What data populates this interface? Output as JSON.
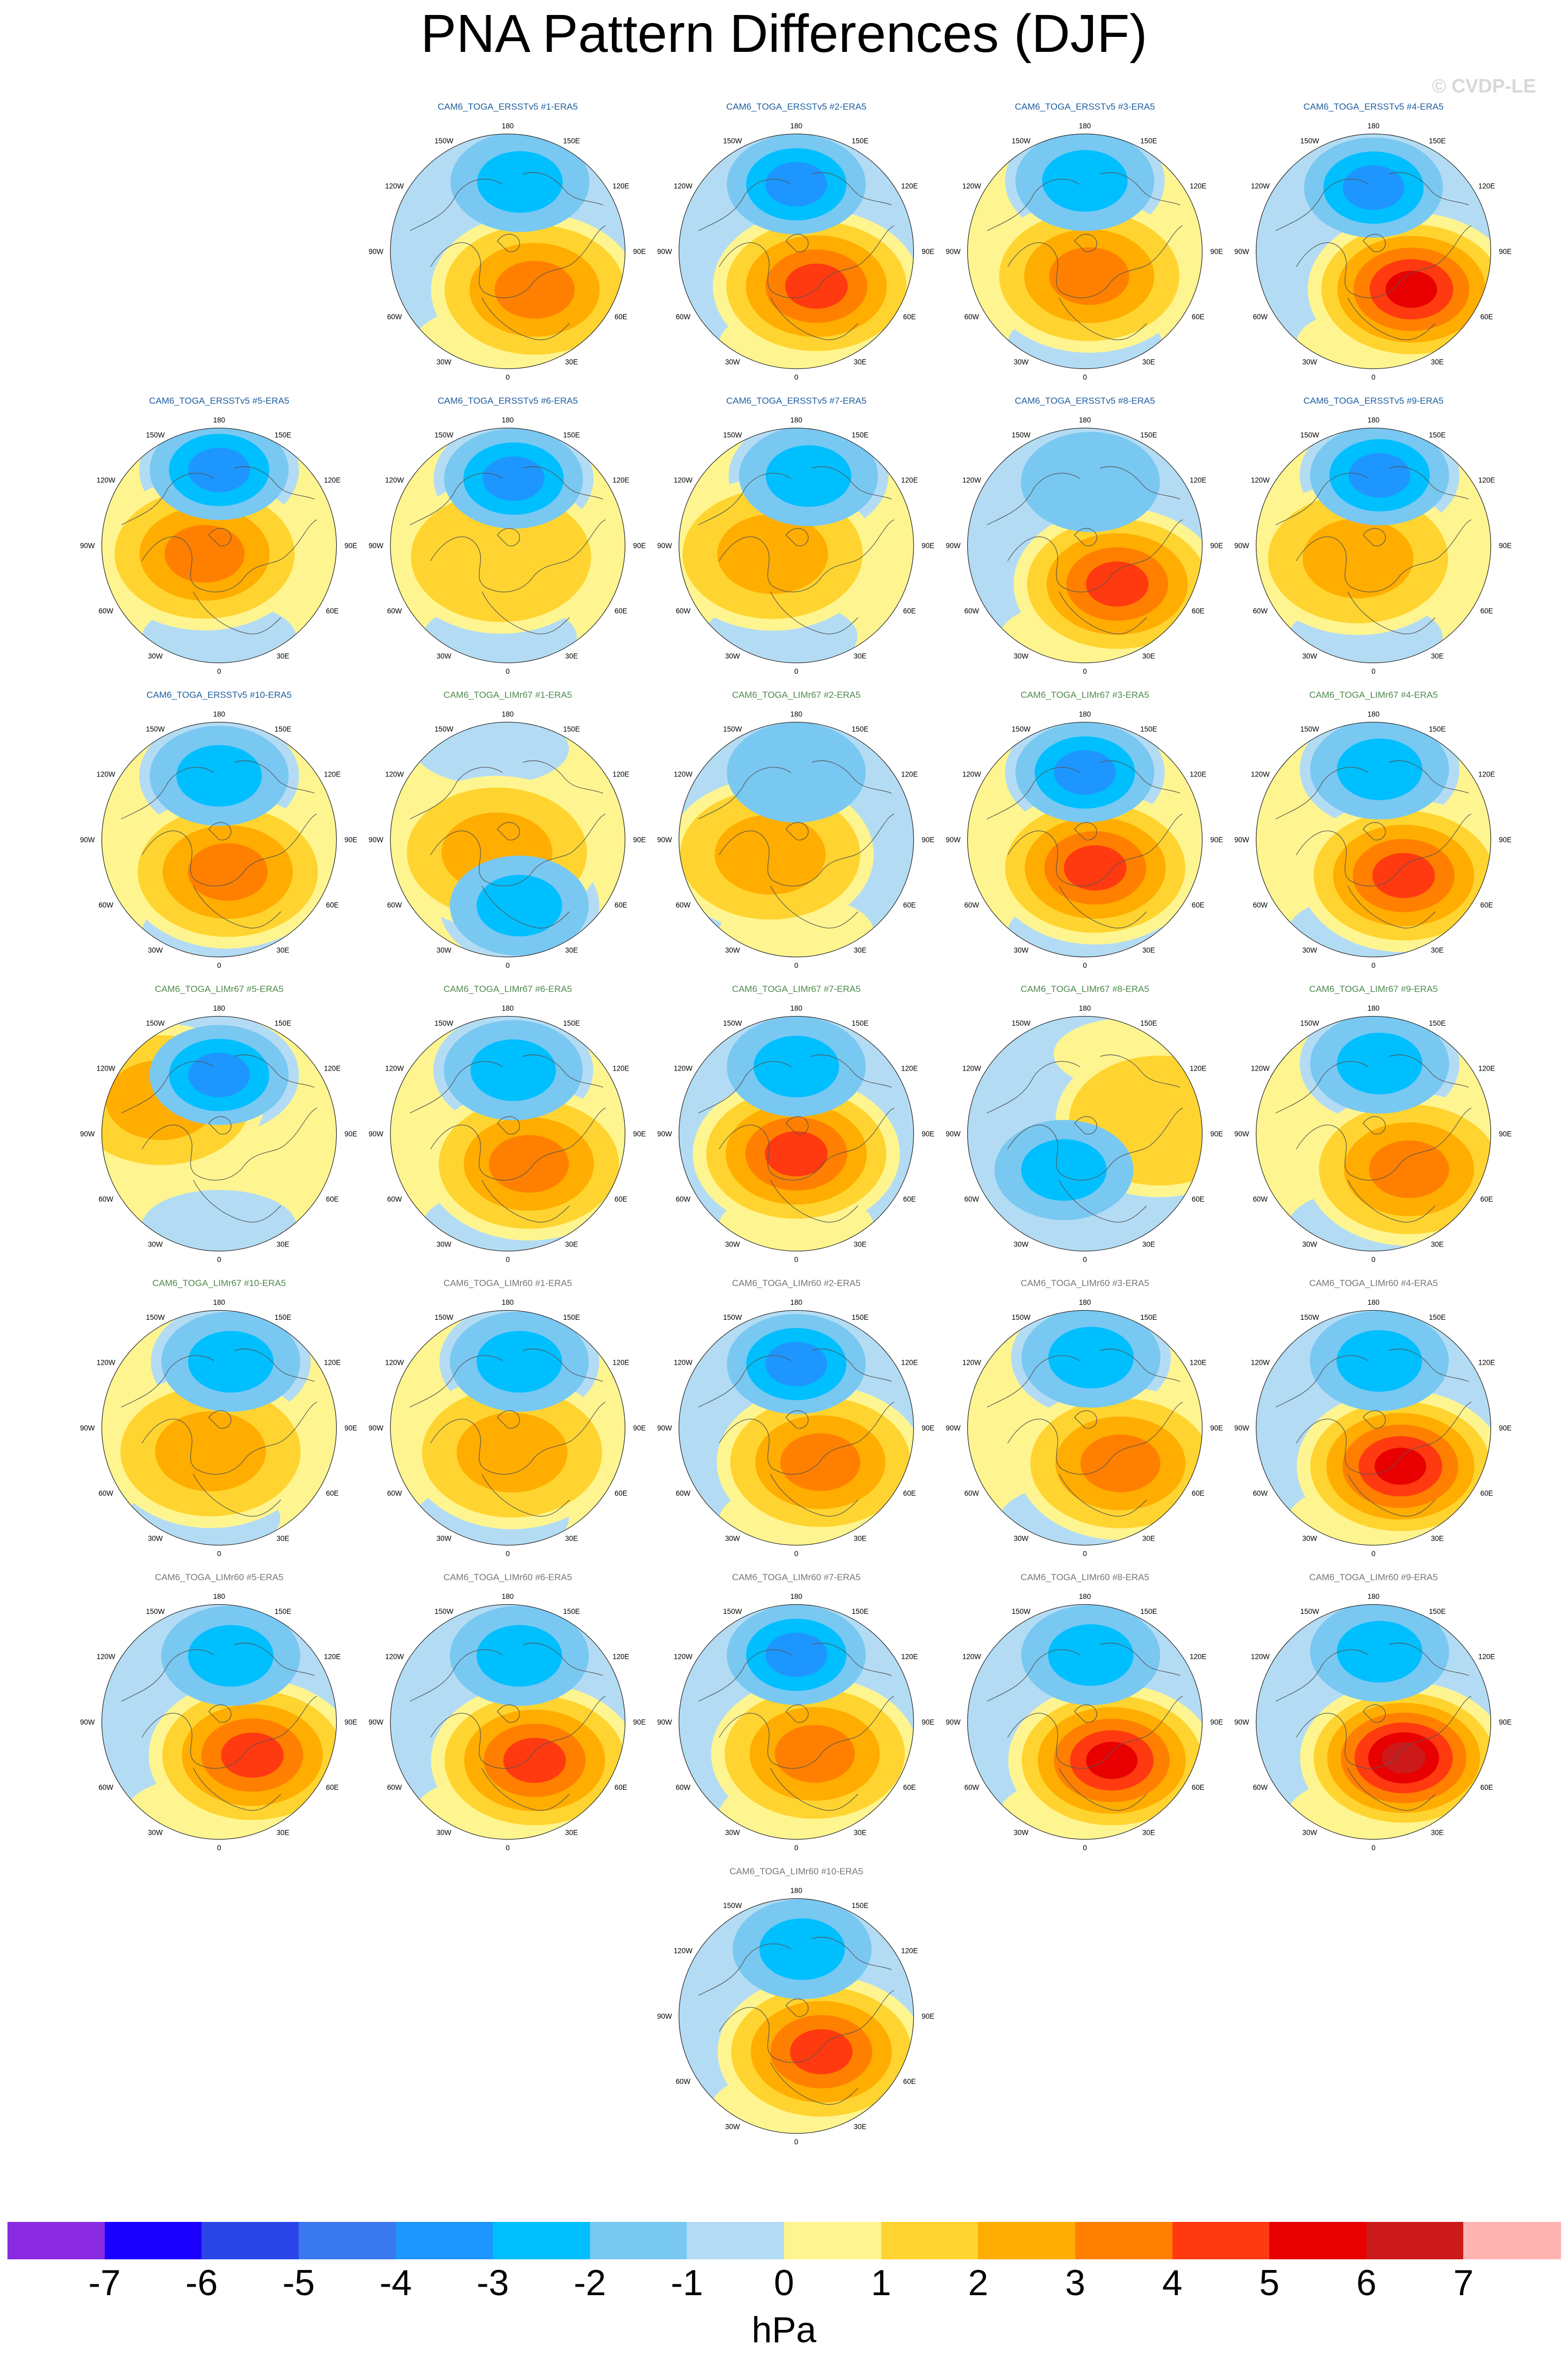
{
  "title": "PNA Pattern Differences (DJF)",
  "watermark": "© CVDP-LE",
  "map_labels": {
    "top": "180",
    "top_left": "150W",
    "top_right": "150E",
    "upper_left": "120W",
    "upper_right": "120E",
    "left": "90W",
    "right": "90E",
    "lower_left": "60W",
    "lower_right": "60E",
    "bottom_left": "30W",
    "bottom_right": "30E",
    "bottom": "0"
  },
  "colorbar": {
    "unit": "hPa",
    "tick_labels": [
      "-7",
      "-6",
      "-5",
      "-4",
      "-3",
      "-2",
      "-1",
      "0",
      "1",
      "2",
      "3",
      "4",
      "5",
      "6",
      "7"
    ],
    "colors": [
      "#8a2be2",
      "#1c00ff",
      "#2b46e8",
      "#3a78f0",
      "#1e96ff",
      "#00bfff",
      "#79c8f2",
      "#b3dcf4",
      "#fff590",
      "#ffd430",
      "#ffad00",
      "#ff8000",
      "#ff3a10",
      "#e80000",
      "#cc1a1a",
      "#ffb4b4"
    ]
  },
  "chart_data": {
    "type": "heatmap",
    "title": "PNA Pattern Differences (DJF)",
    "color_scale": {
      "unit": "hPa",
      "min": -7,
      "max": 7,
      "interval": 1
    },
    "panels": [
      {
        "title": "CAM6_TOGA_ERSSTv5 #1-ERA5",
        "low": {
          "lon": 170,
          "lat": 48,
          "val": -2
        },
        "high": {
          "lon": 35,
          "lat": 62,
          "val": 3
        },
        "bg": "low"
      },
      {
        "title": "CAM6_TOGA_ERSSTv5 #2-ERA5",
        "low": {
          "lon": 180,
          "lat": 50,
          "val": -3
        },
        "high": {
          "lon": 30,
          "lat": 66,
          "val": 4
        },
        "bg": "low"
      },
      {
        "title": "CAM6_TOGA_ERSSTv5 #3-ERA5",
        "low": {
          "lon": 180,
          "lat": 48,
          "val": -2
        },
        "high": {
          "lon": 10,
          "lat": 75,
          "val": 3
        },
        "bg": "high"
      },
      {
        "title": "CAM6_TOGA_ERSSTv5 #4-ERA5",
        "low": {
          "lon": 180,
          "lat": 52,
          "val": -3
        },
        "high": {
          "lon": 45,
          "lat": 58,
          "val": 5
        },
        "bg": "low"
      },
      {
        "title": "CAM6_TOGA_ERSSTv5 #5-ERA5",
        "low": {
          "lon": 180,
          "lat": 45,
          "val": -3
        },
        "high": {
          "lon": -60,
          "lat": 80,
          "val": 3
        },
        "bg": "high"
      },
      {
        "title": "CAM6_TOGA_ERSSTv5 #6-ERA5",
        "low": {
          "lon": 175,
          "lat": 50,
          "val": -3
        },
        "high": {
          "lon": -30,
          "lat": 82,
          "val": 1
        },
        "bg": "high"
      },
      {
        "title": "CAM6_TOGA_ERSSTv5 #7-ERA5",
        "low": {
          "lon": 170,
          "lat": 48,
          "val": -2
        },
        "high": {
          "lon": -70,
          "lat": 75,
          "val": 2
        },
        "bg": "high"
      },
      {
        "title": "CAM6_TOGA_ERSSTv5 #8-ERA5",
        "low": {
          "lon": 175,
          "lat": 52,
          "val": -1
        },
        "high": {
          "lon": 40,
          "lat": 60,
          "val": 4
        },
        "bg": "low"
      },
      {
        "title": "CAM6_TOGA_ERSSTv5 #9-ERA5",
        "low": {
          "lon": 175,
          "lat": 48,
          "val": -3
        },
        "high": {
          "lon": -50,
          "lat": 78,
          "val": 2
        },
        "bg": "high"
      },
      {
        "title": "CAM6_TOGA_ERSSTv5 #10-ERA5",
        "low": {
          "lon": 180,
          "lat": 52,
          "val": -2
        },
        "high": {
          "lon": 15,
          "lat": 70,
          "val": 3
        },
        "bg": "high"
      },
      {
        "title": "CAM6_TOGA_LIMr67 #1-ERA5",
        "low": {
          "lon": 10,
          "lat": 50,
          "val": -2
        },
        "high": {
          "lon": -40,
          "lat": 80,
          "val": 2
        },
        "bg": "high"
      },
      {
        "title": "CAM6_TOGA_LIMr67 #2-ERA5",
        "low": {
          "lon": 180,
          "lat": 50,
          "val": -1
        },
        "high": {
          "lon": -60,
          "lat": 72,
          "val": 2
        },
        "bg": "low"
      },
      {
        "title": "CAM6_TOGA_LIMr67 #3-ERA5",
        "low": {
          "lon": 180,
          "lat": 50,
          "val": -3
        },
        "high": {
          "lon": 20,
          "lat": 72,
          "val": 4
        },
        "bg": "high"
      },
      {
        "title": "CAM6_TOGA_LIMr67 #4-ERA5",
        "low": {
          "lon": 175,
          "lat": 48,
          "val": -2
        },
        "high": {
          "lon": 40,
          "lat": 62,
          "val": 4
        },
        "bg": "high"
      },
      {
        "title": "CAM6_TOGA_LIMr67 #5-ERA5",
        "low": {
          "lon": 180,
          "lat": 55,
          "val": -3
        },
        "high": {
          "lon": -120,
          "lat": 50,
          "val": 2
        },
        "bg": "high"
      },
      {
        "title": "CAM6_TOGA_LIMr67 #6-ERA5",
        "low": {
          "lon": 175,
          "lat": 52,
          "val": -2
        },
        "high": {
          "lon": 35,
          "lat": 68,
          "val": 3
        },
        "bg": "high"
      },
      {
        "title": "CAM6_TOGA_LIMr67 #7-ERA5",
        "low": {
          "lon": 180,
          "lat": 50,
          "val": -2
        },
        "high": {
          "lon": 0,
          "lat": 78,
          "val": 4
        },
        "bg": "low"
      },
      {
        "title": "CAM6_TOGA_LIMr67 #8-ERA5",
        "low": {
          "lon": -30,
          "lat": 65,
          "val": -2
        },
        "high": {
          "lon": 100,
          "lat": 45,
          "val": 1
        },
        "bg": "low"
      },
      {
        "title": "CAM6_TOGA_LIMr67 #9-ERA5",
        "low": {
          "lon": 175,
          "lat": 48,
          "val": -2
        },
        "high": {
          "lon": 45,
          "lat": 60,
          "val": 3
        },
        "bg": "high"
      },
      {
        "title": "CAM6_TOGA_LIMr67 #10-ERA5",
        "low": {
          "lon": 170,
          "lat": 50,
          "val": -2
        },
        "high": {
          "lon": -20,
          "lat": 75,
          "val": 2
        },
        "bg": "high"
      },
      {
        "title": "CAM6_TOGA_LIMr60 #1-ERA5",
        "low": {
          "lon": 170,
          "lat": 50,
          "val": -2
        },
        "high": {
          "lon": 10,
          "lat": 75,
          "val": 2
        },
        "bg": "high"
      },
      {
        "title": "CAM6_TOGA_LIMr60 #2-ERA5",
        "low": {
          "lon": 180,
          "lat": 52,
          "val": -3
        },
        "high": {
          "lon": 35,
          "lat": 65,
          "val": 3
        },
        "bg": "low"
      },
      {
        "title": "CAM6_TOGA_LIMr60 #3-ERA5",
        "low": {
          "lon": 175,
          "lat": 48,
          "val": -2
        },
        "high": {
          "lon": 45,
          "lat": 60,
          "val": 3
        },
        "bg": "high"
      },
      {
        "title": "CAM6_TOGA_LIMr60 #4-ERA5",
        "low": {
          "lon": 175,
          "lat": 50,
          "val": -2
        },
        "high": {
          "lon": 35,
          "lat": 62,
          "val": 5
        },
        "bg": "low"
      },
      {
        "title": "CAM6_TOGA_LIMr60 #5-ERA5",
        "low": {
          "lon": 170,
          "lat": 50,
          "val": -2
        },
        "high": {
          "lon": 45,
          "lat": 62,
          "val": 4
        },
        "bg": "low"
      },
      {
        "title": "CAM6_TOGA_LIMr60 #6-ERA5",
        "low": {
          "lon": 170,
          "lat": 50,
          "val": -2
        },
        "high": {
          "lon": 35,
          "lat": 62,
          "val": 4
        },
        "bg": "low"
      },
      {
        "title": "CAM6_TOGA_LIMr60 #7-ERA5",
        "low": {
          "lon": 180,
          "lat": 50,
          "val": -3
        },
        "high": {
          "lon": 30,
          "lat": 68,
          "val": 3
        },
        "bg": "low"
      },
      {
        "title": "CAM6_TOGA_LIMr60 #8-ERA5",
        "low": {
          "lon": 175,
          "lat": 50,
          "val": -2
        },
        "high": {
          "lon": 35,
          "lat": 62,
          "val": 5
        },
        "bg": "low"
      },
      {
        "title": "CAM6_TOGA_LIMr60 #9-ERA5",
        "low": {
          "lon": 175,
          "lat": 48,
          "val": -2
        },
        "high": {
          "lon": 40,
          "lat": 62,
          "val": 6
        },
        "bg": "low"
      },
      {
        "title": "CAM6_TOGA_LIMr60 #10-ERA5",
        "low": {
          "lon": 175,
          "lat": 50,
          "val": -2
        },
        "high": {
          "lon": 35,
          "lat": 64,
          "val": 4
        },
        "bg": "low"
      }
    ]
  }
}
